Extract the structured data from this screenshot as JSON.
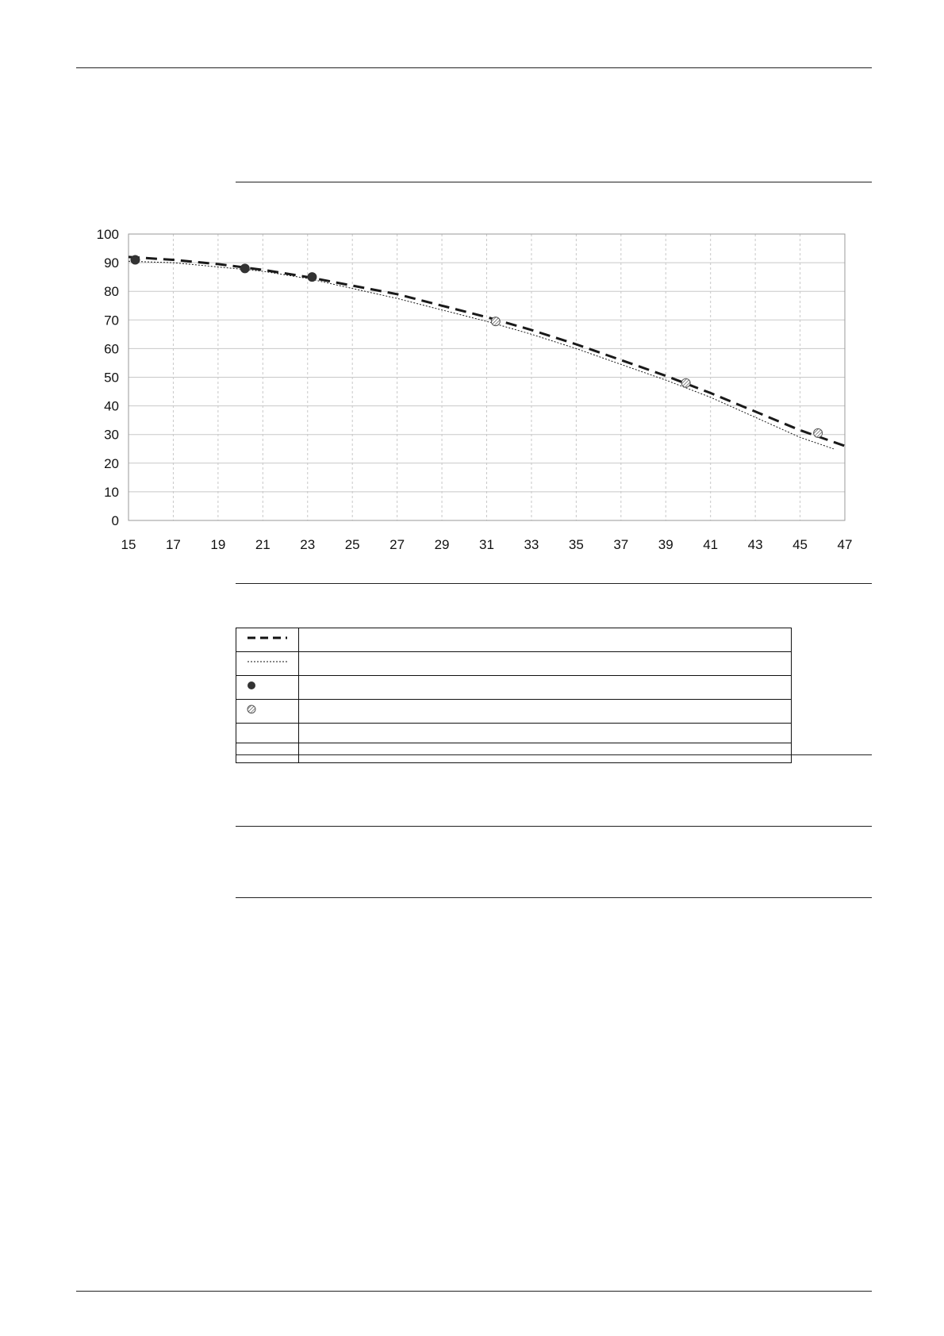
{
  "chart_data": {
    "type": "line",
    "title": "",
    "xlabel": "",
    "ylabel": "",
    "xlim": [
      15,
      47
    ],
    "ylim": [
      0,
      100
    ],
    "x_ticks": [
      15,
      17,
      19,
      21,
      23,
      25,
      27,
      29,
      31,
      33,
      35,
      37,
      39,
      41,
      43,
      45,
      47
    ],
    "y_ticks": [
      0,
      10,
      20,
      30,
      40,
      50,
      60,
      70,
      80,
      90,
      100
    ],
    "grid": true,
    "series": [
      {
        "style": "dashed",
        "x": [
          15,
          17,
          19,
          21,
          23,
          25,
          27,
          29,
          31,
          33,
          35,
          37,
          39,
          41,
          43,
          45,
          47
        ],
        "y": [
          92,
          91,
          89.5,
          87.5,
          85,
          82,
          79,
          75,
          71,
          66.5,
          61.5,
          56,
          50.5,
          44.5,
          38,
          31.5,
          26
        ]
      },
      {
        "style": "dotted",
        "x": [
          15,
          17,
          19,
          21,
          23,
          25,
          27,
          29,
          31,
          33,
          35,
          37,
          39,
          41,
          43,
          45,
          46.5
        ],
        "y": [
          90.5,
          90,
          88.5,
          87,
          84.5,
          81,
          77.5,
          73.5,
          69.5,
          65,
          60,
          54.5,
          49,
          43,
          36,
          29,
          25
        ]
      },
      {
        "style": "marker-filled",
        "x": [
          15.3,
          20.2,
          23.2
        ],
        "y": [
          91,
          88,
          85
        ]
      },
      {
        "style": "marker-hatched",
        "x": [
          31.4,
          39.9,
          45.8
        ],
        "y": [
          69.5,
          48,
          30.5
        ]
      }
    ]
  },
  "legend_rows": [
    {
      "symbol": "dashed-line-icon",
      "text": ""
    },
    {
      "symbol": "dotted-line-icon",
      "text": ""
    },
    {
      "symbol": "filled-circle-icon",
      "text": ""
    },
    {
      "symbol": "hatched-circle-icon",
      "text": ""
    },
    {
      "symbol": "",
      "text": ""
    },
    {
      "symbol": "",
      "text": ""
    }
  ],
  "colors": {
    "line": "#1a1a1a",
    "grid": "#c8c8c8",
    "marker_filled": "#333333",
    "marker_hatched": "#9a9a9a"
  }
}
